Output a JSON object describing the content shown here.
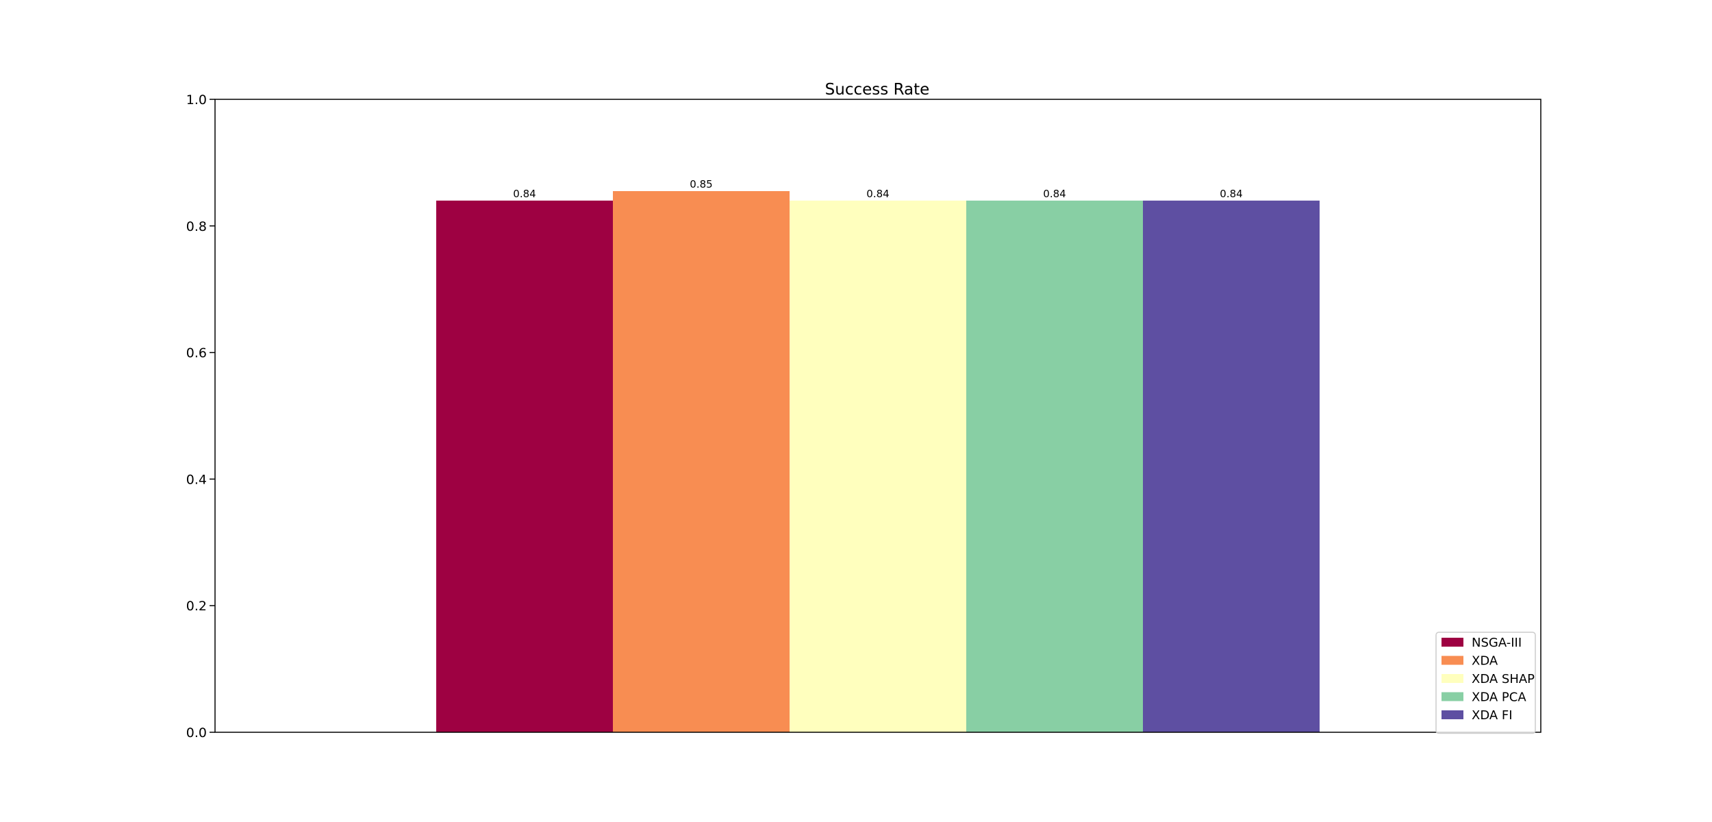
{
  "chart_data": {
    "type": "bar",
    "title": "Success Rate",
    "xlabel": "",
    "ylabel": "",
    "ylim": [
      0,
      1.0
    ],
    "yticks": [
      0.0,
      0.2,
      0.4,
      0.6,
      0.8,
      1.0
    ],
    "ytick_labels": [
      "0.0",
      "0.2",
      "0.4",
      "0.6",
      "0.8",
      "1.0"
    ],
    "grid": false,
    "legend_position": "bottom-right",
    "series": [
      {
        "name": "NSGA-III",
        "value": 0.84,
        "label": "0.84",
        "color": "#9e0142"
      },
      {
        "name": "XDA",
        "value": 0.855,
        "label": "0.85",
        "color": "#f88d52"
      },
      {
        "name": "XDA SHAP",
        "value": 0.84,
        "label": "0.84",
        "color": "#ffffbe"
      },
      {
        "name": "XDA PCA",
        "value": 0.84,
        "label": "0.84",
        "color": "#88cfa4"
      },
      {
        "name": "XDA FI",
        "value": 0.84,
        "label": "0.84",
        "color": "#5e4fa2"
      }
    ]
  }
}
